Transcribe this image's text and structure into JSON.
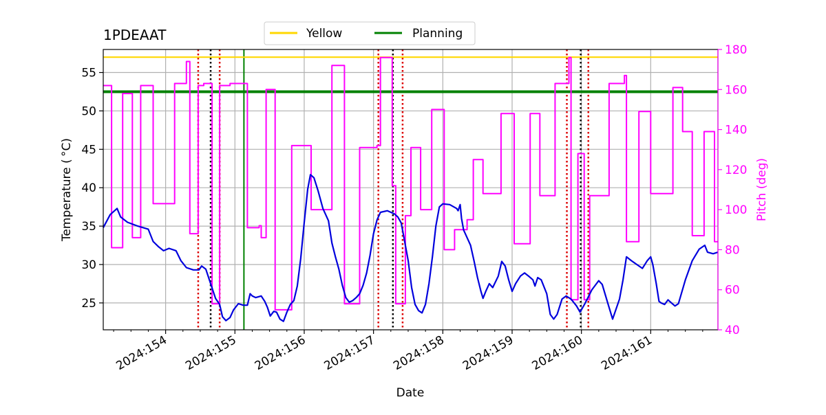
{
  "colors": {
    "temperature": "#0000dd",
    "pitch": "#ff00ff",
    "yellow_limit": "#ffd700",
    "planning_limit": "#008000",
    "red_marker": "#dd0000",
    "black_marker": "#000000",
    "grid": "#b0b0b0"
  },
  "chart_data": {
    "type": "line",
    "title": "1PDEAAT",
    "xlabel": "Date",
    "ylabel": "Temperature ($^\\circ$C)",
    "ylabel_display": "Temperature ( °C)",
    "y2label": "Pitch (deg)",
    "xlim": [
      153.1,
      161.97
    ],
    "ylim": [
      21.5,
      58.0
    ],
    "y2lim": [
      40,
      180
    ],
    "x_ticks": [
      154,
      155,
      156,
      157,
      158,
      159,
      160,
      161
    ],
    "x_tick_labels": [
      "2024:154",
      "2024:155",
      "2024:156",
      "2024:157",
      "2024:158",
      "2024:159",
      "2024:160",
      "2024:161"
    ],
    "y_ticks": [
      25,
      30,
      35,
      40,
      45,
      50,
      55
    ],
    "y_tick_labels": [
      "25",
      "30",
      "35",
      "40",
      "45",
      "50",
      "55"
    ],
    "y2_ticks": [
      40,
      60,
      80,
      100,
      120,
      140,
      160,
      180
    ],
    "y2_tick_labels": [
      "40",
      "60",
      "80",
      "100",
      "120",
      "140",
      "160",
      "180"
    ],
    "legend": {
      "position": "top-center",
      "entries": [
        {
          "label": "Yellow",
          "color_key": "yellow_limit"
        },
        {
          "label": "Planning",
          "color_key": "planning_limit"
        }
      ]
    },
    "hlines": [
      {
        "name": "Yellow",
        "y": 57.0,
        "color_key": "yellow_limit"
      },
      {
        "name": "Planning",
        "y": 52.5,
        "color_key": "planning_limit"
      }
    ],
    "vlines": [
      {
        "x": 154.47,
        "style": "red-dotted"
      },
      {
        "x": 154.65,
        "style": "black-dotted"
      },
      {
        "x": 154.78,
        "style": "red-dotted"
      },
      {
        "x": 155.13,
        "style": "green-solid"
      },
      {
        "x": 157.07,
        "style": "red-dotted"
      },
      {
        "x": 157.28,
        "style": "black-dotted"
      },
      {
        "x": 157.42,
        "style": "red-dotted"
      },
      {
        "x": 159.79,
        "style": "red-dotted"
      },
      {
        "x": 159.99,
        "style": "black-dotted"
      },
      {
        "x": 160.1,
        "style": "red-dotted"
      }
    ],
    "series": [
      {
        "name": "Temperature",
        "axis": "left",
        "color_key": "temperature",
        "points": [
          [
            153.1,
            34.8
          ],
          [
            153.2,
            36.5
          ],
          [
            153.3,
            37.3
          ],
          [
            153.35,
            36.2
          ],
          [
            153.45,
            35.5
          ],
          [
            153.6,
            35.0
          ],
          [
            153.75,
            34.6
          ],
          [
            153.82,
            33.0
          ],
          [
            153.9,
            32.3
          ],
          [
            153.97,
            31.8
          ],
          [
            154.05,
            32.1
          ],
          [
            154.15,
            31.8
          ],
          [
            154.22,
            30.5
          ],
          [
            154.3,
            29.6
          ],
          [
            154.4,
            29.3
          ],
          [
            154.48,
            29.3
          ],
          [
            154.52,
            29.8
          ],
          [
            154.58,
            29.4
          ],
          [
            154.65,
            27.5
          ],
          [
            154.72,
            25.6
          ],
          [
            154.78,
            24.8
          ],
          [
            154.82,
            23.2
          ],
          [
            154.87,
            22.7
          ],
          [
            154.93,
            23.1
          ],
          [
            154.98,
            24.1
          ],
          [
            155.05,
            24.9
          ],
          [
            155.12,
            24.7
          ],
          [
            155.18,
            24.7
          ],
          [
            155.22,
            26.2
          ],
          [
            155.25,
            25.9
          ],
          [
            155.3,
            25.7
          ],
          [
            155.38,
            25.9
          ],
          [
            155.43,
            25.2
          ],
          [
            155.47,
            24.4
          ],
          [
            155.51,
            23.3
          ],
          [
            155.56,
            23.9
          ],
          [
            155.6,
            23.8
          ],
          [
            155.65,
            22.9
          ],
          [
            155.7,
            22.6
          ],
          [
            155.75,
            23.8
          ],
          [
            155.8,
            24.8
          ],
          [
            155.85,
            25.3
          ],
          [
            155.9,
            27.2
          ],
          [
            155.95,
            30.8
          ],
          [
            156.0,
            35.5
          ],
          [
            156.05,
            39.8
          ],
          [
            156.09,
            41.7
          ],
          [
            156.14,
            41.3
          ],
          [
            156.2,
            39.6
          ],
          [
            156.27,
            37.3
          ],
          [
            156.35,
            35.7
          ],
          [
            156.4,
            32.8
          ],
          [
            156.45,
            31.0
          ],
          [
            156.5,
            29.4
          ],
          [
            156.55,
            27.3
          ],
          [
            156.6,
            25.7
          ],
          [
            156.65,
            25.1
          ],
          [
            156.7,
            25.3
          ],
          [
            156.75,
            25.7
          ],
          [
            156.8,
            26.2
          ],
          [
            156.85,
            27.3
          ],
          [
            156.9,
            28.9
          ],
          [
            156.95,
            31.2
          ],
          [
            157.0,
            34.0
          ],
          [
            157.05,
            35.8
          ],
          [
            157.1,
            36.8
          ],
          [
            157.2,
            37.0
          ],
          [
            157.3,
            36.6
          ],
          [
            157.35,
            36.2
          ],
          [
            157.4,
            35.4
          ],
          [
            157.45,
            33.0
          ],
          [
            157.5,
            30.5
          ],
          [
            157.55,
            27.0
          ],
          [
            157.6,
            24.8
          ],
          [
            157.65,
            24.0
          ],
          [
            157.7,
            23.7
          ],
          [
            157.75,
            24.8
          ],
          [
            157.8,
            27.5
          ],
          [
            157.85,
            31.0
          ],
          [
            157.9,
            35.0
          ],
          [
            157.95,
            37.5
          ],
          [
            158.0,
            37.9
          ],
          [
            158.1,
            37.8
          ],
          [
            158.2,
            37.3
          ],
          [
            158.22,
            37.0
          ],
          [
            158.25,
            37.8
          ],
          [
            158.27,
            36.0
          ],
          [
            158.3,
            34.5
          ],
          [
            158.35,
            33.5
          ],
          [
            158.4,
            32.5
          ],
          [
            158.45,
            30.5
          ],
          [
            158.5,
            28.3
          ],
          [
            158.55,
            26.5
          ],
          [
            158.58,
            25.6
          ],
          [
            158.62,
            26.5
          ],
          [
            158.67,
            27.5
          ],
          [
            158.72,
            27.0
          ],
          [
            158.8,
            28.5
          ],
          [
            158.85,
            30.4
          ],
          [
            158.9,
            29.8
          ],
          [
            158.95,
            28.0
          ],
          [
            159.0,
            26.5
          ],
          [
            159.05,
            27.5
          ],
          [
            159.12,
            28.5
          ],
          [
            159.18,
            28.9
          ],
          [
            159.25,
            28.4
          ],
          [
            159.3,
            28.0
          ],
          [
            159.33,
            27.2
          ],
          [
            159.37,
            28.3
          ],
          [
            159.42,
            28.0
          ],
          [
            159.5,
            26.2
          ],
          [
            159.55,
            23.5
          ],
          [
            159.6,
            22.9
          ],
          [
            159.65,
            23.5
          ],
          [
            159.72,
            25.5
          ],
          [
            159.78,
            25.9
          ],
          [
            159.85,
            25.5
          ],
          [
            159.93,
            24.6
          ],
          [
            159.98,
            23.8
          ],
          [
            160.05,
            24.9
          ],
          [
            160.15,
            26.7
          ],
          [
            160.25,
            27.9
          ],
          [
            160.3,
            27.4
          ],
          [
            160.38,
            25.0
          ],
          [
            160.45,
            22.9
          ],
          [
            160.55,
            25.5
          ],
          [
            160.6,
            28.0
          ],
          [
            160.65,
            31.0
          ],
          [
            160.72,
            30.5
          ],
          [
            160.8,
            30.0
          ],
          [
            160.88,
            29.5
          ],
          [
            160.95,
            30.5
          ],
          [
            161.0,
            31.0
          ],
          [
            161.03,
            30.0
          ],
          [
            161.08,
            27.5
          ],
          [
            161.12,
            25.2
          ],
          [
            161.15,
            25.0
          ],
          [
            161.2,
            24.8
          ],
          [
            161.25,
            25.4
          ],
          [
            161.3,
            25.0
          ],
          [
            161.35,
            24.6
          ],
          [
            161.4,
            24.9
          ],
          [
            161.5,
            28.0
          ],
          [
            161.6,
            30.5
          ],
          [
            161.7,
            32.0
          ],
          [
            161.78,
            32.5
          ],
          [
            161.82,
            31.6
          ],
          [
            161.9,
            31.4
          ],
          [
            161.97,
            31.6
          ]
        ]
      },
      {
        "name": "Pitch",
        "axis": "right",
        "color_key": "pitch",
        "points": [
          [
            153.1,
            162
          ],
          [
            153.22,
            162
          ],
          [
            153.22,
            81
          ],
          [
            153.38,
            81
          ],
          [
            153.38,
            158
          ],
          [
            153.52,
            158
          ],
          [
            153.52,
            86
          ],
          [
            153.64,
            86
          ],
          [
            153.64,
            162
          ],
          [
            153.82,
            162
          ],
          [
            153.82,
            103
          ],
          [
            154.13,
            103
          ],
          [
            154.13,
            163
          ],
          [
            154.3,
            163
          ],
          [
            154.3,
            174
          ],
          [
            154.35,
            174
          ],
          [
            154.35,
            88
          ],
          [
            154.47,
            88
          ],
          [
            154.47,
            162
          ],
          [
            154.55,
            162
          ],
          [
            154.55,
            163
          ],
          [
            154.67,
            163
          ],
          [
            154.67,
            53
          ],
          [
            154.78,
            53
          ],
          [
            154.78,
            162
          ],
          [
            154.93,
            162
          ],
          [
            154.93,
            163
          ],
          [
            155.18,
            163
          ],
          [
            155.18,
            91
          ],
          [
            155.35,
            91
          ],
          [
            155.35,
            92
          ],
          [
            155.38,
            92
          ],
          [
            155.38,
            86
          ],
          [
            155.45,
            86
          ],
          [
            155.45,
            160
          ],
          [
            155.58,
            160
          ],
          [
            155.58,
            50
          ],
          [
            155.82,
            50
          ],
          [
            155.82,
            132
          ],
          [
            156.1,
            132
          ],
          [
            156.1,
            100
          ],
          [
            156.4,
            100
          ],
          [
            156.4,
            172
          ],
          [
            156.58,
            172
          ],
          [
            156.58,
            53
          ],
          [
            156.8,
            53
          ],
          [
            156.8,
            131
          ],
          [
            157.05,
            131
          ],
          [
            157.05,
            132
          ],
          [
            157.1,
            132
          ],
          [
            157.1,
            176
          ],
          [
            157.27,
            176
          ],
          [
            157.27,
            112
          ],
          [
            157.32,
            112
          ],
          [
            157.32,
            53
          ],
          [
            157.46,
            53
          ],
          [
            157.46,
            97
          ],
          [
            157.54,
            97
          ],
          [
            157.54,
            131
          ],
          [
            157.68,
            131
          ],
          [
            157.68,
            100
          ],
          [
            157.84,
            100
          ],
          [
            157.84,
            150
          ],
          [
            158.02,
            150
          ],
          [
            158.02,
            80
          ],
          [
            158.17,
            80
          ],
          [
            158.17,
            90
          ],
          [
            158.35,
            90
          ],
          [
            158.35,
            95
          ],
          [
            158.44,
            95
          ],
          [
            158.44,
            125
          ],
          [
            158.58,
            125
          ],
          [
            158.58,
            108
          ],
          [
            158.84,
            108
          ],
          [
            158.84,
            148
          ],
          [
            159.03,
            148
          ],
          [
            159.03,
            83
          ],
          [
            159.26,
            83
          ],
          [
            159.26,
            148
          ],
          [
            159.4,
            148
          ],
          [
            159.4,
            107
          ],
          [
            159.62,
            107
          ],
          [
            159.62,
            163
          ],
          [
            159.82,
            163
          ],
          [
            159.82,
            176
          ],
          [
            159.85,
            176
          ],
          [
            159.85,
            55
          ],
          [
            159.95,
            55
          ],
          [
            159.95,
            128
          ],
          [
            160.04,
            128
          ],
          [
            160.04,
            55
          ],
          [
            160.12,
            55
          ],
          [
            160.12,
            107
          ],
          [
            160.4,
            107
          ],
          [
            160.4,
            163
          ],
          [
            160.62,
            163
          ],
          [
            160.62,
            167
          ],
          [
            160.65,
            167
          ],
          [
            160.65,
            84
          ],
          [
            160.83,
            84
          ],
          [
            160.83,
            149
          ],
          [
            161.0,
            149
          ],
          [
            161.0,
            108
          ],
          [
            161.32,
            108
          ],
          [
            161.32,
            161
          ],
          [
            161.46,
            161
          ],
          [
            161.46,
            139
          ],
          [
            161.6,
            139
          ],
          [
            161.6,
            87
          ],
          [
            161.77,
            87
          ],
          [
            161.77,
            139
          ],
          [
            161.92,
            139
          ],
          [
            161.92,
            84
          ],
          [
            161.97,
            84
          ]
        ]
      }
    ]
  }
}
